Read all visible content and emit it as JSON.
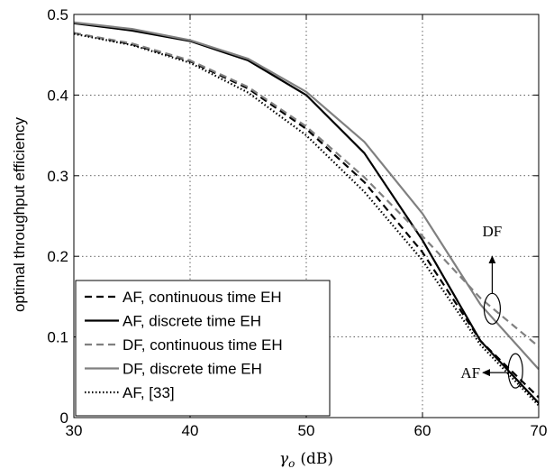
{
  "chart_data": {
    "type": "line",
    "xlabel_symbol": "γ",
    "xlabel_subscript": "o",
    "xlabel_unit": "(dB)",
    "ylabel": "optimal throughput efficiency",
    "xlim": [
      30,
      70
    ],
    "ylim": [
      0,
      0.5
    ],
    "xticks": [
      30,
      40,
      50,
      60,
      70
    ],
    "xtick_labels": [
      "30",
      "40",
      "50",
      "60",
      "70"
    ],
    "yticks": [
      0,
      0.1,
      0.2,
      0.3,
      0.4,
      0.5
    ],
    "ytick_labels": [
      "0",
      "0.1",
      "0.2",
      "0.3",
      "0.4",
      "0.5"
    ],
    "grid": true,
    "legend_position": "bottom-left",
    "series": [
      {
        "name": "AF, continuous time EH",
        "color": "#000000",
        "style": "dashed",
        "x": [
          30,
          35,
          40,
          45,
          50,
          55,
          60,
          65,
          70
        ],
        "y": [
          0.477,
          0.463,
          0.442,
          0.408,
          0.358,
          0.292,
          0.205,
          0.095,
          0.025
        ]
      },
      {
        "name": "AF, discrete time EH",
        "color": "#000000",
        "style": "solid",
        "x": [
          30,
          35,
          40,
          45,
          50,
          55,
          60,
          65,
          70
        ],
        "y": [
          0.489,
          0.48,
          0.467,
          0.443,
          0.4,
          0.328,
          0.22,
          0.095,
          0.018
        ]
      },
      {
        "name": "DF, continuous time EH",
        "color": "#808080",
        "style": "dashed",
        "x": [
          30,
          35,
          40,
          45,
          50,
          55,
          60,
          65,
          70
        ],
        "y": [
          0.477,
          0.464,
          0.443,
          0.41,
          0.361,
          0.298,
          0.225,
          0.148,
          0.088
        ]
      },
      {
        "name": "DF, discrete time EH",
        "color": "#808080",
        "style": "solid",
        "x": [
          30,
          35,
          40,
          45,
          50,
          55,
          60,
          65,
          70
        ],
        "y": [
          0.49,
          0.482,
          0.468,
          0.445,
          0.404,
          0.342,
          0.253,
          0.14,
          0.06
        ]
      },
      {
        "name": "AF, [33]",
        "color": "#000000",
        "style": "dotted",
        "x": [
          30,
          35,
          40,
          45,
          50,
          55,
          60,
          65,
          70
        ],
        "y": [
          0.476,
          0.462,
          0.44,
          0.403,
          0.35,
          0.28,
          0.195,
          0.09,
          0.015
        ]
      }
    ],
    "annotations": [
      {
        "text": "DF",
        "ellipse_at": [
          66,
          0.135
        ],
        "arrow_to": [
          66,
          0.2
        ]
      },
      {
        "text": "AF",
        "ellipse_at": [
          68,
          0.058
        ],
        "arrow_to": [
          65.2,
          0.056
        ]
      }
    ]
  }
}
